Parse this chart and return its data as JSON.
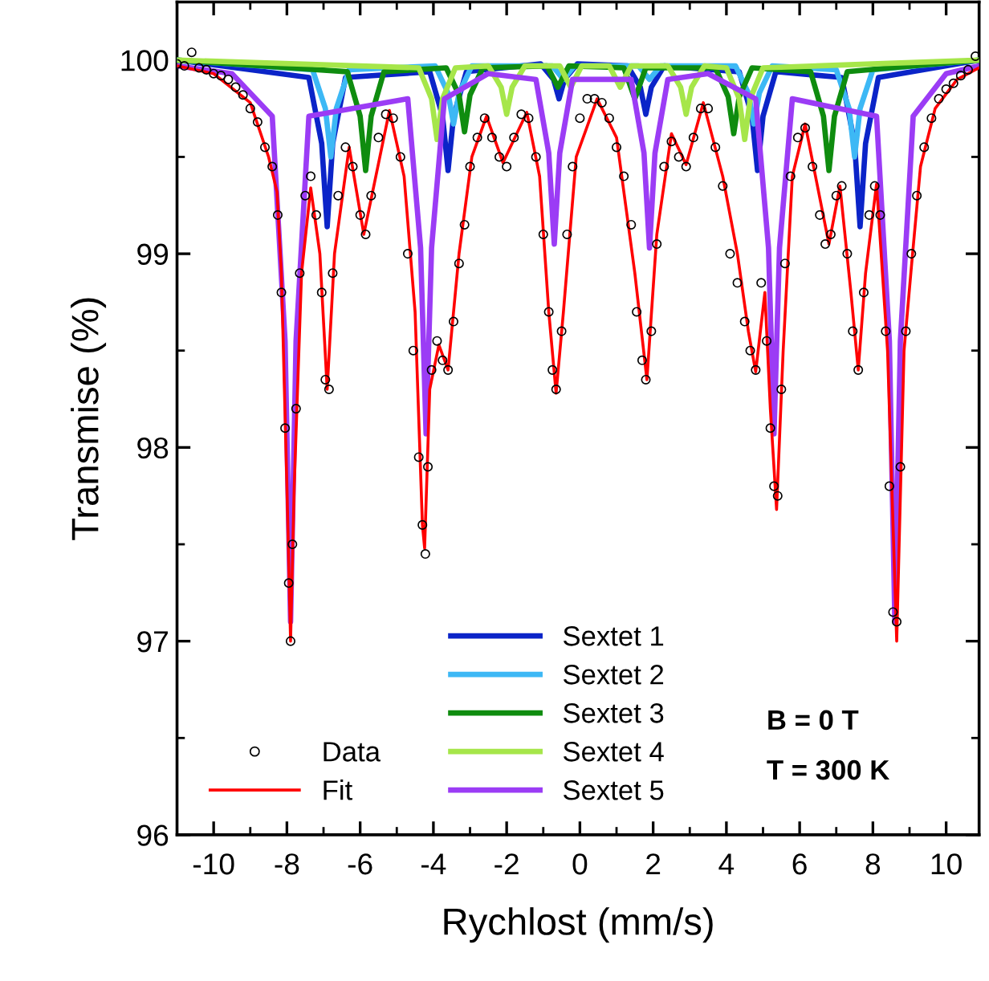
{
  "chart_data": {
    "type": "line",
    "xlabel": "Rychlost (mm/s)",
    "ylabel": "Transmise (%)",
    "xlim": [
      -11,
      10.9
    ],
    "ylim": [
      96,
      100.3
    ],
    "xticks": [
      -10,
      -8,
      -6,
      -4,
      -2,
      0,
      2,
      4,
      6,
      8,
      10,
      {
        "value": -11,
        "label": null
      },
      {
        "value": -9,
        "label": null
      },
      {
        "value": -7,
        "label": null
      },
      {
        "value": -5,
        "label": null
      },
      {
        "value": -3,
        "label": null
      },
      {
        "value": -1,
        "label": null
      },
      {
        "value": 1,
        "label": null
      },
      {
        "value": 3,
        "label": null
      },
      {
        "value": 5,
        "label": null
      },
      {
        "value": 7,
        "label": null
      },
      {
        "value": 9,
        "label": null
      }
    ],
    "yticks": [
      96,
      97,
      98,
      99,
      100,
      {
        "value": 96.5,
        "label": null
      },
      {
        "value": 97.5,
        "label": null
      },
      {
        "value": 98.5,
        "label": null
      },
      {
        "value": 99.5,
        "label": null
      }
    ],
    "grid": false,
    "legend": "bottom",
    "annotations": [
      "B = 0 T",
      "T = 300 K"
    ],
    "series": [
      {
        "name": "Sextet 1",
        "color": "#0b24c8",
        "x": [
          -11,
          -7.4,
          -7.05,
          -6.9,
          -6.75,
          -6.4,
          -4.1,
          -3.75,
          -3.6,
          -3.45,
          -3.1,
          -1.07,
          -0.72,
          -0.57,
          -0.42,
          -0.07,
          1.3,
          1.65,
          1.8,
          1.95,
          2.3,
          4.35,
          4.7,
          4.85,
          5.0,
          5.35,
          7.15,
          7.5,
          7.65,
          7.8,
          8.15,
          10.9
        ],
        "values": [
          100,
          99.91,
          99.57,
          99.14,
          99.57,
          99.91,
          99.94,
          99.71,
          99.43,
          99.71,
          99.94,
          99.98,
          99.9,
          99.8,
          99.9,
          99.98,
          99.97,
          99.86,
          99.72,
          99.86,
          99.97,
          99.94,
          99.71,
          99.43,
          99.71,
          99.94,
          99.91,
          99.57,
          99.14,
          99.57,
          99.91,
          100
        ]
      },
      {
        "name": "Sextet 2",
        "color": "#3db8f5",
        "x": [
          -11,
          -7.3,
          -6.95,
          -6.8,
          -6.65,
          -6.3,
          -3.95,
          -3.6,
          -3.45,
          -3.3,
          -2.95,
          -0.75,
          -0.45,
          -0.15,
          1.6,
          1.9,
          2.2,
          4.25,
          4.6,
          4.75,
          4.9,
          5.25,
          7.0,
          7.35,
          7.5,
          7.65,
          8.0,
          10.9
        ],
        "values": [
          100,
          99.95,
          99.75,
          99.5,
          99.75,
          99.95,
          99.97,
          99.83,
          99.67,
          99.83,
          99.97,
          99.97,
          99.9,
          99.97,
          99.97,
          99.9,
          99.97,
          99.97,
          99.83,
          99.67,
          99.83,
          99.97,
          99.95,
          99.75,
          99.5,
          99.75,
          99.95,
          100
        ]
      },
      {
        "name": "Sextet 3",
        "color": "#0f8c0f",
        "x": [
          -11,
          -6.35,
          -6.0,
          -5.85,
          -5.7,
          -5.35,
          -3.65,
          -3.3,
          -3.15,
          -3.0,
          -2.65,
          -0.9,
          -0.6,
          -0.3,
          1.2,
          1.5,
          1.8,
          3.7,
          4.05,
          4.2,
          4.35,
          4.7,
          6.3,
          6.65,
          6.8,
          6.95,
          7.3,
          10.9
        ],
        "values": [
          100,
          99.94,
          99.71,
          99.43,
          99.71,
          99.94,
          99.96,
          99.82,
          99.63,
          99.82,
          99.96,
          99.97,
          99.86,
          99.97,
          99.96,
          99.8,
          99.96,
          99.96,
          99.81,
          99.62,
          99.81,
          99.96,
          99.94,
          99.71,
          99.43,
          99.71,
          99.94,
          100
        ]
      },
      {
        "name": "Sextet 4",
        "color": "#a6e64a",
        "x": [
          -11,
          -4.4,
          -4.05,
          -3.9,
          -3.75,
          -3.4,
          -2.5,
          -2.15,
          -2.0,
          -1.85,
          -1.5,
          -0.55,
          -0.25,
          0.05,
          0.8,
          1.1,
          1.4,
          2.4,
          2.75,
          2.9,
          3.05,
          3.4,
          4.0,
          4.35,
          4.5,
          4.65,
          5.0,
          10.9
        ],
        "values": [
          100,
          99.96,
          99.8,
          99.59,
          99.8,
          99.96,
          99.97,
          99.86,
          99.72,
          99.86,
          99.97,
          99.97,
          99.86,
          99.97,
          99.97,
          99.86,
          99.97,
          99.97,
          99.86,
          99.72,
          99.86,
          99.97,
          99.96,
          99.8,
          99.59,
          99.8,
          99.96,
          100
        ]
      },
      {
        "name": "Sextet 5",
        "color": "#9b3cf5",
        "x": [
          -11,
          -9.5,
          -8.4,
          -8.05,
          -7.9,
          -7.75,
          -7.4,
          -4.7,
          -4.35,
          -4.2,
          -4.05,
          -3.7,
          -2.5,
          -1.2,
          -0.85,
          -0.7,
          -0.55,
          -0.2,
          1.4,
          1.75,
          1.9,
          2.05,
          2.4,
          3.5,
          4.8,
          5.15,
          5.3,
          5.45,
          5.8,
          8.1,
          8.45,
          8.6,
          8.75,
          9.1,
          10,
          10.9
        ],
        "values": [
          99.97,
          99.93,
          99.71,
          98.55,
          97.1,
          98.55,
          99.71,
          99.8,
          99.03,
          98.07,
          99.03,
          99.8,
          99.93,
          99.9,
          99.52,
          99.05,
          99.52,
          99.9,
          99.9,
          99.52,
          99.03,
          99.52,
          99.9,
          99.93,
          99.8,
          99.03,
          98.07,
          99.03,
          99.8,
          99.71,
          98.55,
          97.1,
          98.55,
          99.71,
          99.93,
          99.97
        ]
      },
      {
        "name": "Data",
        "type": "scatter",
        "marker": "circle",
        "color": "#000000",
        "x": [
          -11,
          -10.8,
          -10.6,
          -10.4,
          -10.2,
          -10,
          -9.8,
          -9.6,
          -9.4,
          -9.2,
          -9,
          -8.8,
          -8.6,
          -8.4,
          -8.25,
          -8.15,
          -8.05,
          -7.95,
          -7.9,
          -7.85,
          -7.75,
          -7.65,
          -7.5,
          -7.35,
          -7.2,
          -7.05,
          -6.95,
          -6.85,
          -6.75,
          -6.6,
          -6.4,
          -6.2,
          -6.0,
          -5.85,
          -5.7,
          -5.5,
          -5.3,
          -5.1,
          -4.9,
          -4.7,
          -4.55,
          -4.4,
          -4.3,
          -4.22,
          -4.15,
          -4.05,
          -3.9,
          -3.75,
          -3.6,
          -3.45,
          -3.3,
          -3.15,
          -3.0,
          -2.8,
          -2.6,
          -2.4,
          -2.2,
          -2.0,
          -1.8,
          -1.6,
          -1.4,
          -1.2,
          -1.0,
          -0.85,
          -0.75,
          -0.65,
          -0.5,
          -0.35,
          -0.2,
          0.0,
          0.2,
          0.4,
          0.6,
          0.8,
          1.0,
          1.2,
          1.4,
          1.55,
          1.7,
          1.8,
          1.95,
          2.1,
          2.3,
          2.5,
          2.7,
          2.9,
          3.1,
          3.3,
          3.5,
          3.7,
          3.9,
          4.1,
          4.3,
          4.5,
          4.65,
          4.8,
          4.95,
          5.1,
          5.2,
          5.3,
          5.4,
          5.5,
          5.6,
          5.75,
          5.95,
          6.15,
          6.35,
          6.55,
          6.7,
          6.85,
          7.0,
          7.15,
          7.3,
          7.45,
          7.6,
          7.75,
          7.9,
          8.05,
          8.2,
          8.35,
          8.45,
          8.55,
          8.65,
          8.75,
          8.9,
          9.05,
          9.2,
          9.4,
          9.6,
          9.8,
          10.0,
          10.2,
          10.4,
          10.6,
          10.8
        ],
        "values": [
          99.98,
          99.97,
          100.04,
          99.96,
          99.95,
          99.93,
          99.92,
          99.9,
          99.86,
          99.82,
          99.75,
          99.68,
          99.55,
          99.45,
          99.2,
          98.8,
          98.1,
          97.3,
          97.0,
          97.5,
          98.2,
          98.9,
          99.3,
          99.4,
          99.2,
          98.8,
          98.35,
          98.3,
          98.9,
          99.3,
          99.55,
          99.45,
          99.2,
          99.1,
          99.3,
          99.6,
          99.72,
          99.7,
          99.5,
          99.0,
          98.5,
          97.95,
          97.6,
          97.45,
          97.9,
          98.4,
          98.55,
          98.45,
          98.4,
          98.65,
          98.95,
          99.15,
          99.45,
          99.6,
          99.7,
          99.6,
          99.5,
          99.45,
          99.6,
          99.72,
          99.7,
          99.5,
          99.1,
          98.7,
          98.4,
          98.3,
          98.6,
          99.1,
          99.45,
          99.7,
          99.8,
          99.8,
          99.78,
          99.7,
          99.55,
          99.4,
          99.15,
          98.7,
          98.45,
          98.35,
          98.6,
          99.05,
          99.45,
          99.58,
          99.5,
          99.45,
          99.6,
          99.75,
          99.75,
          99.55,
          99.35,
          99.0,
          98.85,
          98.65,
          98.5,
          98.4,
          98.85,
          98.55,
          98.1,
          97.8,
          97.75,
          98.3,
          98.95,
          99.4,
          99.6,
          99.65,
          99.45,
          99.2,
          99.05,
          99.1,
          99.3,
          99.35,
          99.0,
          98.6,
          98.4,
          98.8,
          99.2,
          99.35,
          99.2,
          98.6,
          97.8,
          97.15,
          97.1,
          97.9,
          98.6,
          99.0,
          99.3,
          99.55,
          99.7,
          99.8,
          99.85,
          99.88,
          99.92,
          99.95,
          100.02
        ]
      },
      {
        "name": "Fit",
        "color": "#ff0000",
        "x": [
          -11,
          -10,
          -9,
          -8.5,
          -8.27,
          -8.15,
          -8.0,
          -7.9,
          -7.8,
          -7.6,
          -7.35,
          -7.1,
          -6.9,
          -6.7,
          -6.3,
          -5.9,
          -5.2,
          -4.8,
          -4.5,
          -4.3,
          -4.24,
          -4.1,
          -3.85,
          -3.6,
          -3.3,
          -2.95,
          -2.55,
          -2.1,
          -1.45,
          -1.1,
          -0.85,
          -0.65,
          -0.45,
          -0.1,
          0.47,
          1.0,
          1.5,
          1.83,
          2.1,
          2.5,
          2.9,
          3.37,
          3.9,
          4.3,
          4.6,
          4.8,
          5.05,
          5.2,
          5.37,
          5.55,
          5.8,
          6.15,
          6.8,
          7.1,
          7.4,
          7.6,
          7.8,
          8.1,
          8.4,
          8.65,
          8.85,
          9.05,
          9.3,
          9.7,
          10.3,
          10.9
        ],
        "values": [
          99.97,
          99.93,
          99.78,
          99.5,
          99.32,
          98.9,
          97.8,
          97.0,
          97.8,
          98.9,
          99.34,
          99.0,
          98.3,
          99.0,
          99.55,
          99.1,
          99.74,
          99.4,
          98.7,
          97.6,
          97.48,
          98.3,
          98.53,
          98.4,
          99.0,
          99.5,
          99.71,
          99.47,
          99.73,
          99.4,
          98.7,
          98.28,
          98.7,
          99.5,
          99.8,
          99.6,
          98.9,
          98.35,
          99.1,
          99.62,
          99.46,
          99.78,
          99.4,
          99.0,
          98.6,
          98.39,
          98.8,
          98.2,
          97.68,
          98.5,
          99.4,
          99.67,
          99.05,
          99.35,
          98.8,
          98.4,
          98.9,
          99.36,
          98.5,
          97.0,
          98.5,
          98.93,
          99.45,
          99.75,
          99.9,
          99.96
        ]
      }
    ]
  }
}
